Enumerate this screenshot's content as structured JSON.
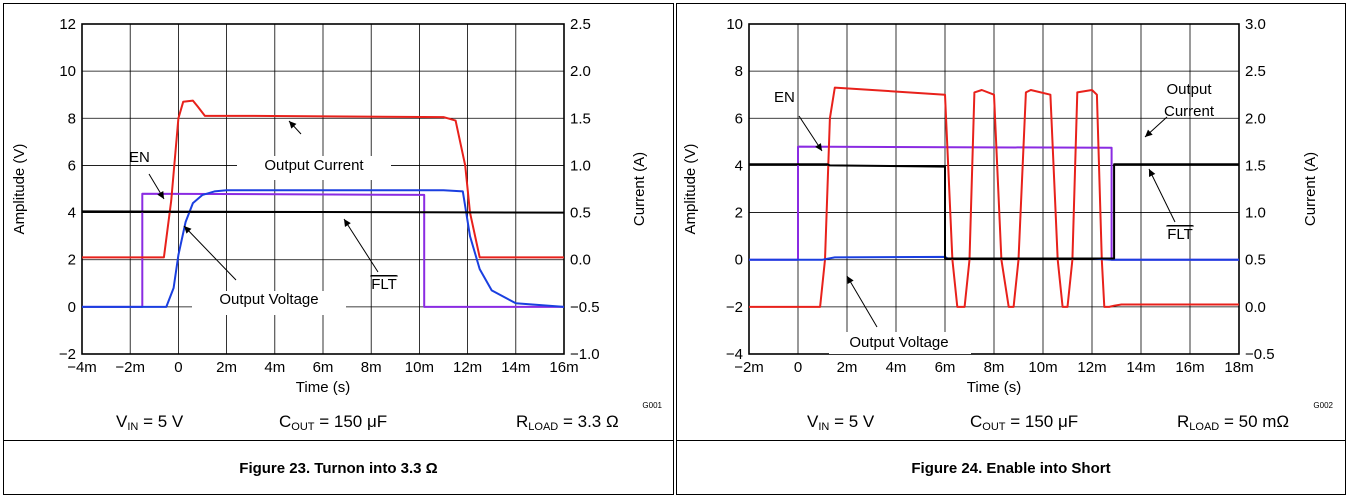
{
  "chart_data": [
    {
      "type": "line",
      "figure_id": "G001",
      "caption": "Figure 23. Turnon into 3.3 Ω",
      "conditions": {
        "vin": {
          "name": "V",
          "sub": "IN",
          "value": " = 5 V"
        },
        "cout": {
          "name": "C",
          "sub": "OUT",
          "value": " = 150 μF"
        },
        "rload": {
          "name": "R",
          "sub": "LOAD",
          "value": " = 3.3 Ω"
        }
      },
      "xlabel": "Time (s)",
      "ylabel_left": "Amplitude (V)",
      "ylabel_right": "Current (A)",
      "xlim": [
        -0.004,
        0.016
      ],
      "ylim_left": [
        -2,
        12
      ],
      "ylim_right": [
        -1.0,
        2.5
      ],
      "xticks": [
        -0.004,
        -0.002,
        0,
        0.002,
        0.004,
        0.006,
        0.008,
        0.01,
        0.012,
        0.014,
        0.016
      ],
      "xtick_labels": [
        "−4m",
        "−2m",
        "0",
        "2m",
        "4m",
        "6m",
        "8m",
        "10m",
        "12m",
        "14m",
        "16m"
      ],
      "yticks_left": [
        -2,
        0,
        2,
        4,
        6,
        8,
        10,
        12
      ],
      "ytick_labels_left": [
        "−2",
        "0",
        "2",
        "4",
        "6",
        "8",
        "10",
        "12"
      ],
      "ytick_labels_right": [
        "−1.0",
        "−0.5",
        "0.0",
        "0.5",
        "1.0",
        "1.5",
        "2.0",
        "2.5"
      ],
      "grid": true,
      "series": [
        {
          "name": "EN",
          "color": "#8a2be2",
          "x": [
            -0.004,
            -0.0015,
            -0.0015,
            0.0102,
            0.0102,
            0.016
          ],
          "y": [
            0.0,
            0.0,
            4.8,
            4.75,
            0.0,
            0.0
          ]
        },
        {
          "name": "Output Current",
          "color": "#e8211b",
          "x": [
            -0.004,
            -0.0006,
            -0.0003,
            0.0,
            0.0002,
            0.0006,
            0.0008,
            0.0011,
            0.003,
            0.011,
            0.0115,
            0.0119,
            0.0121,
            0.0125,
            0.016
          ],
          "y": [
            2.1,
            2.1,
            4.5,
            8.0,
            8.7,
            8.75,
            8.5,
            8.1,
            8.1,
            8.05,
            7.9,
            6.0,
            4.0,
            2.1,
            2.1
          ]
        },
        {
          "name": "Output Voltage",
          "color": "#1a3fe0",
          "x": [
            -0.004,
            -0.0005,
            -0.0002,
            0.0,
            0.0003,
            0.0006,
            0.001,
            0.0015,
            0.002,
            0.011,
            0.0118,
            0.0121,
            0.0125,
            0.013,
            0.014,
            0.016
          ],
          "y": [
            0.0,
            0.0,
            0.8,
            2.2,
            3.6,
            4.4,
            4.75,
            4.9,
            4.95,
            4.95,
            4.9,
            3.0,
            1.6,
            0.7,
            0.15,
            0.0
          ]
        },
        {
          "name": "FLT",
          "color": "#000000",
          "x": [
            -0.004,
            0.016
          ],
          "y": [
            4.05,
            4.0
          ]
        }
      ],
      "annotations": [
        {
          "text": "EN",
          "overline": false
        },
        {
          "text": "Output Current",
          "overline": false
        },
        {
          "text": "Output Voltage",
          "overline": false
        },
        {
          "text": "FLT",
          "overline": true
        }
      ]
    },
    {
      "type": "line",
      "figure_id": "G002",
      "caption": "Figure 24. Enable into Short",
      "conditions": {
        "vin": {
          "name": "V",
          "sub": "IN",
          "value": " = 5 V"
        },
        "cout": {
          "name": "C",
          "sub": "OUT",
          "value": " = 150 μF"
        },
        "rload": {
          "name": "R",
          "sub": "LOAD",
          "value": " = 50 mΩ"
        }
      },
      "xlabel": "Time (s)",
      "ylabel_left": "Amplitude (V)",
      "ylabel_right": "Current (A)",
      "xlim": [
        -0.002,
        0.018
      ],
      "ylim_left": [
        -4,
        10
      ],
      "ylim_right": [
        -0.5,
        3.0
      ],
      "xticks": [
        -0.002,
        0,
        0.002,
        0.004,
        0.006,
        0.008,
        0.01,
        0.012,
        0.014,
        0.016,
        0.018
      ],
      "xtick_labels": [
        "−2m",
        "0",
        "2m",
        "4m",
        "6m",
        "8m",
        "10m",
        "12m",
        "14m",
        "16m",
        "18m"
      ],
      "yticks_left": [
        -4,
        -2,
        0,
        2,
        4,
        6,
        8,
        10
      ],
      "ytick_labels_left": [
        "−4",
        "−2",
        "0",
        "2",
        "4",
        "6",
        "8",
        "10"
      ],
      "ytick_labels_right": [
        "−0.5",
        "0.0",
        "0.5",
        "1.0",
        "1.5",
        "2.0",
        "2.5",
        "3.0"
      ],
      "grid": true,
      "series": [
        {
          "name": "EN",
          "color": "#8a2be2",
          "x": [
            -0.002,
            0.0,
            0.0,
            0.0128,
            0.0128,
            0.018
          ],
          "y": [
            0.0,
            0.0,
            4.8,
            4.75,
            0.0,
            0.0
          ]
        },
        {
          "name": "Output Current",
          "color": "#e8211b",
          "x": [
            -0.002,
            0.0009,
            0.0011,
            0.0013,
            0.0015,
            0.006,
            0.0063,
            0.0065,
            0.0068,
            0.007,
            0.0072,
            0.0075,
            0.008,
            0.0083,
            0.0086,
            0.0088,
            0.009,
            0.0093,
            0.0095,
            0.0103,
            0.0106,
            0.0108,
            0.011,
            0.0112,
            0.0114,
            0.012,
            0.0122,
            0.0124,
            0.0125,
            0.0127,
            0.0129,
            0.0132,
            0.018
          ],
          "y": [
            -2.0,
            -2.0,
            0.0,
            6.0,
            7.3,
            7.0,
            0.0,
            -2.0,
            -2.0,
            0.0,
            7.1,
            7.2,
            7.0,
            0.0,
            -2.0,
            -2.0,
            0.0,
            7.1,
            7.2,
            7.0,
            0.0,
            -2.0,
            -2.0,
            0.0,
            7.1,
            7.2,
            7.0,
            0.0,
            -2.0,
            -2.0,
            -1.95,
            -1.9,
            -1.9
          ]
        },
        {
          "name": "Output Voltage",
          "color": "#1a3fe0",
          "x": [
            -0.002,
            0.001,
            0.0015,
            0.006,
            0.0061,
            0.012,
            0.0128,
            0.018
          ],
          "y": [
            0.0,
            0.0,
            0.1,
            0.12,
            0.05,
            0.05,
            0.0,
            0.0
          ]
        },
        {
          "name": "FLT",
          "color": "#000000",
          "x": [
            -0.002,
            0.0012,
            0.0013,
            0.006,
            0.006,
            0.0129,
            0.0129,
            0.018
          ],
          "y": [
            4.05,
            4.05,
            4.0,
            3.95,
            0.05,
            0.05,
            4.05,
            4.05
          ]
        }
      ],
      "annotations": [
        {
          "text": "EN",
          "overline": false
        },
        {
          "text": "Output",
          "overline": false
        },
        {
          "text": "Current",
          "overline": false
        },
        {
          "text": "Output Voltage",
          "overline": false
        },
        {
          "text": "FLT",
          "overline": true
        }
      ]
    }
  ]
}
